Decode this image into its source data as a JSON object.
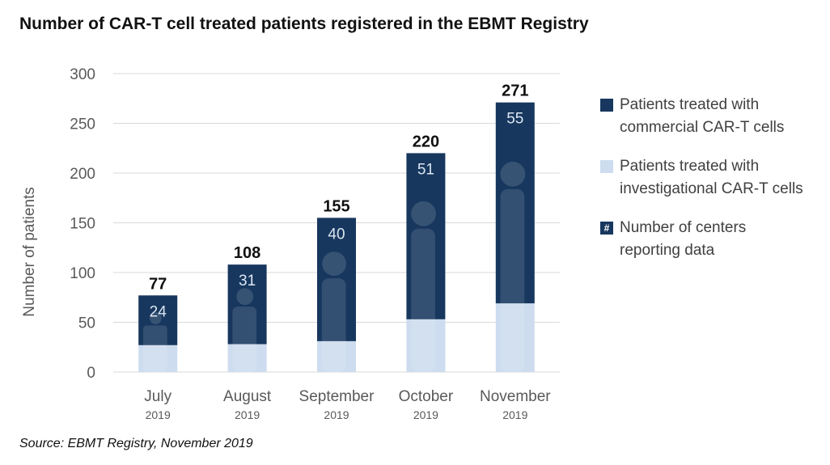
{
  "chart_data": {
    "type": "bar",
    "stacked": true,
    "title": "Number of CAR-T cell treated patients registered in the EBMT Registry",
    "ylabel": "Number of patients",
    "xlabel": "",
    "ylim": [
      0,
      300
    ],
    "yticks": [
      "0",
      "50",
      "100",
      "150",
      "200",
      "250",
      "300"
    ],
    "categories": [
      {
        "month": "July",
        "year": "2019"
      },
      {
        "month": "August",
        "year": "2019"
      },
      {
        "month": "September",
        "year": "2019"
      },
      {
        "month": "October",
        "year": "2019"
      },
      {
        "month": "November",
        "year": "2019"
      }
    ],
    "series": [
      {
        "name": "Patients treated with investigational CAR-T cells",
        "color": "#CDDCEE",
        "values": [
          27,
          28,
          31,
          53,
          69
        ]
      },
      {
        "name": "Patients treated with commercial CAR-T cells",
        "color": "#17375E",
        "values": [
          50,
          80,
          124,
          167,
          202
        ]
      }
    ],
    "totals": [
      "77",
      "108",
      "155",
      "220",
      "271"
    ],
    "centers": [
      "24",
      "31",
      "40",
      "51",
      "55"
    ],
    "grid": true
  },
  "legend": [
    {
      "label": "Patients treated with\ncommercial CAR-T cells",
      "color": "#17375E",
      "marker": ""
    },
    {
      "label": "Patients treated with\ninvestigational CAR-T cells",
      "color": "#CDDCEE",
      "marker": ""
    },
    {
      "label": "Number of centers\nreporting data",
      "color": "#17375E",
      "marker": "#"
    }
  ],
  "source": "Source: EBMT Registry, November 2019"
}
